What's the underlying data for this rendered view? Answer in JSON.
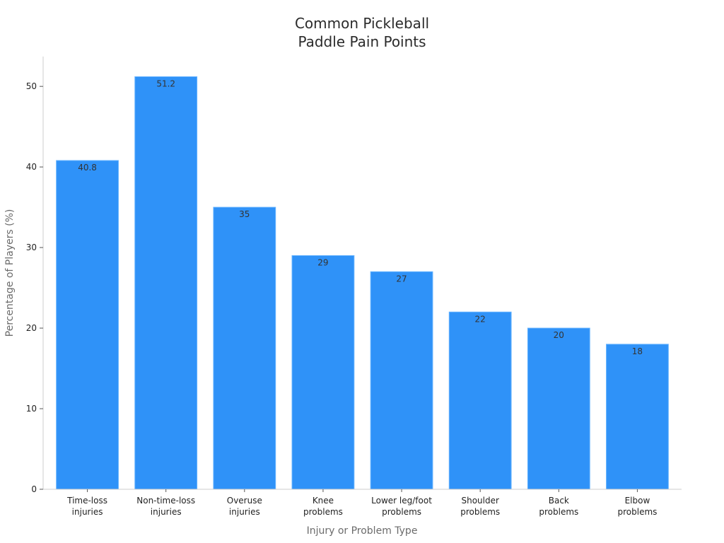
{
  "chart_data": {
    "type": "bar",
    "title": [
      "Common Pickleball",
      "Paddle Pain Points"
    ],
    "xlabel": "Injury or Problem Type",
    "ylabel": "Percentage of Players (%)",
    "categories": [
      [
        "Time-loss",
        "injuries"
      ],
      [
        "Non-time-loss",
        "injuries"
      ],
      [
        "Overuse",
        "injuries"
      ],
      [
        "Knee",
        "problems"
      ],
      [
        "Lower leg/foot",
        "problems"
      ],
      [
        "Shoulder",
        "problems"
      ],
      [
        "Back",
        "problems"
      ],
      [
        "Elbow",
        "problems"
      ]
    ],
    "values": [
      40.8,
      51.2,
      35,
      29,
      27,
      22,
      20,
      18
    ],
    "data_labels": [
      "40.8",
      "51.2",
      "35",
      "29",
      "27",
      "22",
      "20",
      "18"
    ],
    "y_ticks": [
      0,
      10,
      20,
      30,
      40,
      50
    ],
    "ylim": [
      0,
      53.7
    ],
    "bar_color": "#2f92f8",
    "bar_edge_color": "#66b3ff",
    "grid": false,
    "legend": false
  }
}
